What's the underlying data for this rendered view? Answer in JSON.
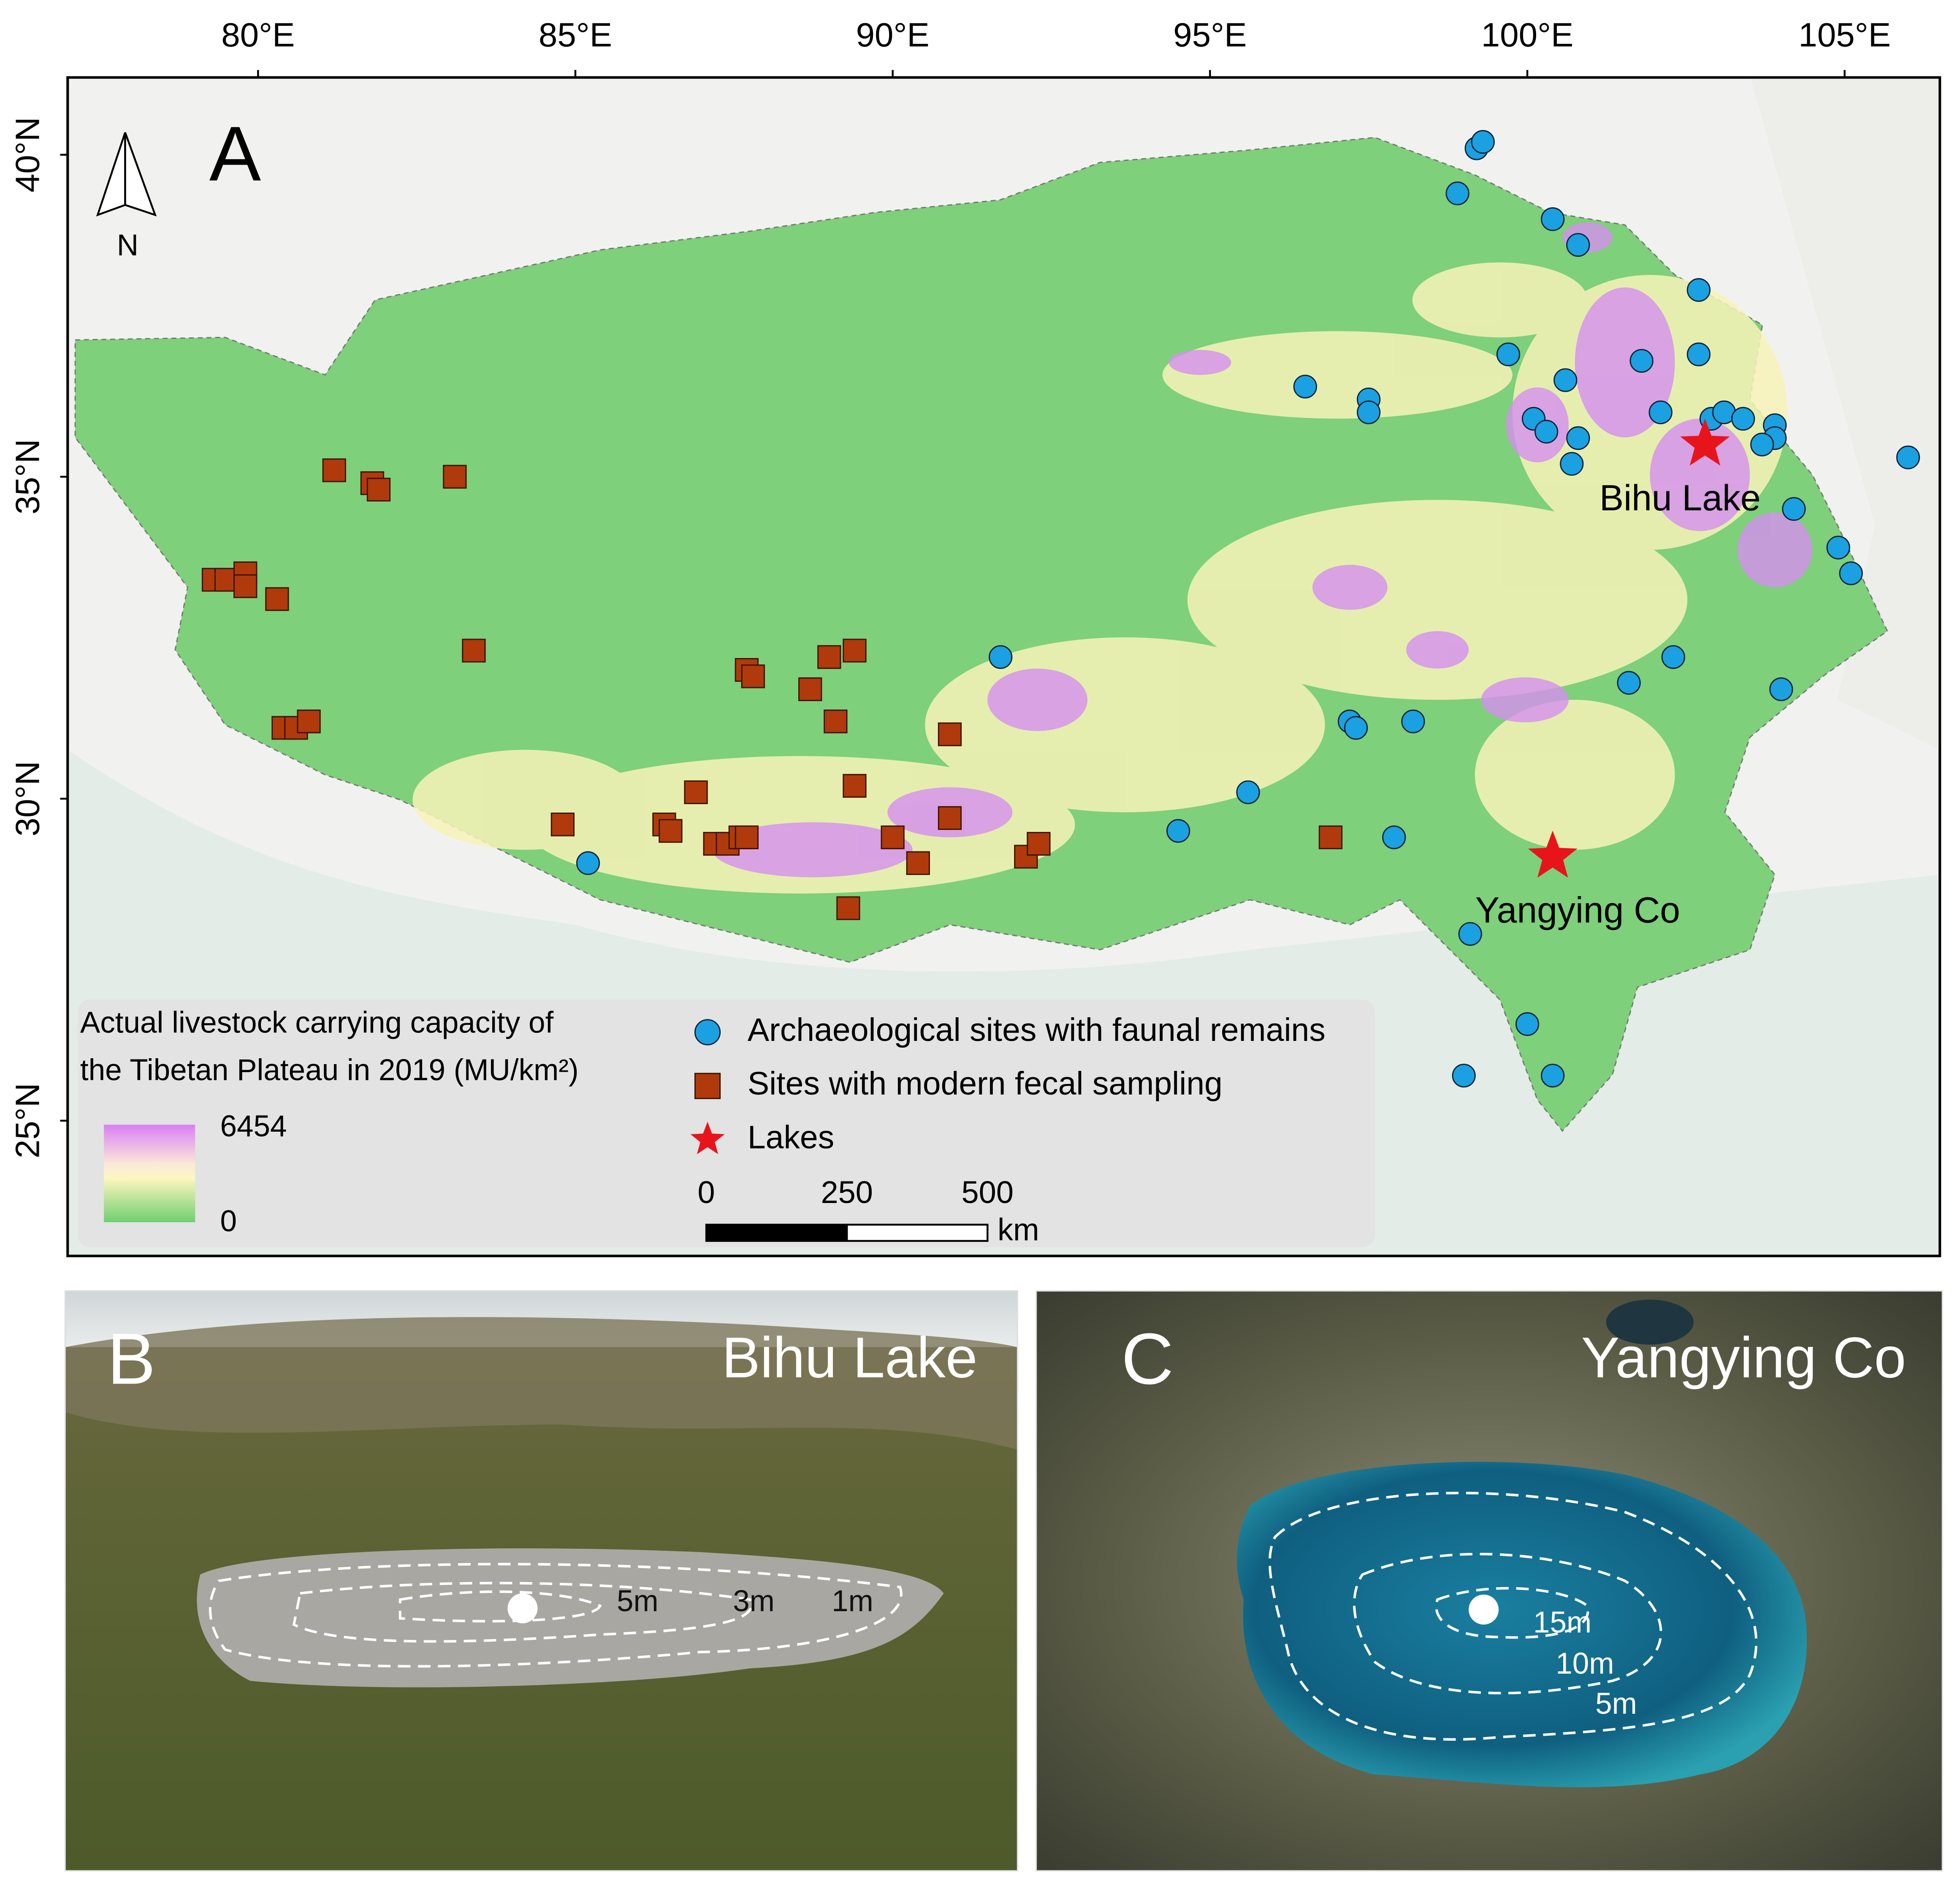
{
  "map": {
    "panel": "A",
    "north": "N",
    "xlim": [
      77,
      106.5
    ],
    "ylim": [
      22.9,
      41.2
    ],
    "xticks": [
      {
        "value": 80,
        "label": "80°E"
      },
      {
        "value": 85,
        "label": "85°E"
      },
      {
        "value": 90,
        "label": "90°E"
      },
      {
        "value": 95,
        "label": "95°E"
      },
      {
        "value": 100,
        "label": "100°E"
      },
      {
        "value": 105,
        "label": "105°E"
      }
    ],
    "yticks": [
      {
        "value": 40,
        "label": "40°N"
      },
      {
        "value": 35,
        "label": "35°N"
      },
      {
        "value": 30,
        "label": "30°N"
      },
      {
        "value": 25,
        "label": "25°N"
      }
    ],
    "colorbar": {
      "title": [
        "Actual livestock carrying capacity of",
        "the Tibetan Plateau in 2019 (MU/km²)"
      ],
      "max": 6454,
      "min": 0
    },
    "scalebar": {
      "ticks": [
        0,
        250,
        500
      ],
      "unit": "km"
    },
    "sites": [
      {
        "name": "Archaeological sites with faunal remains",
        "color": "#1ba1e2",
        "shape": "circle",
        "points": [
          [
            99.2,
            40.1
          ],
          [
            99.3,
            40.2
          ],
          [
            98.9,
            39.4
          ],
          [
            100.4,
            39.0
          ],
          [
            100.8,
            38.6
          ],
          [
            102.7,
            37.9
          ],
          [
            99.7,
            36.9
          ],
          [
            101.8,
            36.8
          ],
          [
            102.7,
            36.9
          ],
          [
            100.6,
            36.5
          ],
          [
            96.5,
            36.4
          ],
          [
            97.5,
            36.2
          ],
          [
            97.5,
            36.0
          ],
          [
            102.1,
            36.0
          ],
          [
            100.1,
            35.9
          ],
          [
            100.3,
            35.7
          ],
          [
            100.8,
            35.6
          ],
          [
            100.7,
            35.2
          ],
          [
            102.9,
            35.9
          ],
          [
            103.1,
            36.0
          ],
          [
            103.4,
            35.9
          ],
          [
            103.9,
            35.8
          ],
          [
            103.9,
            35.6
          ],
          [
            103.7,
            35.5
          ],
          [
            106.0,
            35.3
          ],
          [
            104.2,
            34.5
          ],
          [
            104.9,
            33.9
          ],
          [
            105.1,
            33.5
          ],
          [
            91.7,
            32.2
          ],
          [
            102.3,
            32.2
          ],
          [
            101.6,
            31.8
          ],
          [
            104.0,
            31.7
          ],
          [
            97.2,
            31.2
          ],
          [
            97.3,
            31.1
          ],
          [
            98.2,
            31.2
          ],
          [
            95.6,
            30.1
          ],
          [
            94.5,
            29.5
          ],
          [
            97.9,
            29.4
          ],
          [
            85.2,
            29.0
          ],
          [
            99.1,
            27.9
          ],
          [
            100.0,
            26.5
          ],
          [
            99.0,
            25.7
          ],
          [
            100.4,
            25.7
          ]
        ]
      },
      {
        "name": "Sites with modern fecal sampling",
        "color": "#b03a0c",
        "shape": "square",
        "points": [
          [
            81.2,
            35.1
          ],
          [
            81.8,
            34.9
          ],
          [
            81.9,
            34.8
          ],
          [
            83.1,
            35.0
          ],
          [
            79.3,
            33.4
          ],
          [
            79.5,
            33.4
          ],
          [
            79.8,
            33.5
          ],
          [
            79.8,
            33.3
          ],
          [
            80.3,
            33.1
          ],
          [
            83.4,
            32.3
          ],
          [
            87.7,
            32.0
          ],
          [
            87.8,
            31.9
          ],
          [
            89.0,
            32.2
          ],
          [
            89.4,
            32.3
          ],
          [
            88.7,
            31.7
          ],
          [
            89.1,
            31.2
          ],
          [
            90.9,
            31.0
          ],
          [
            80.4,
            31.1
          ],
          [
            80.6,
            31.1
          ],
          [
            80.8,
            31.2
          ],
          [
            86.9,
            30.1
          ],
          [
            89.4,
            30.2
          ],
          [
            84.8,
            29.6
          ],
          [
            86.4,
            29.6
          ],
          [
            86.5,
            29.5
          ],
          [
            90.9,
            29.7
          ],
          [
            87.2,
            29.3
          ],
          [
            87.4,
            29.3
          ],
          [
            87.6,
            29.4
          ],
          [
            87.7,
            29.4
          ],
          [
            90.0,
            29.4
          ],
          [
            90.4,
            29.0
          ],
          [
            92.1,
            29.1
          ],
          [
            92.3,
            29.3
          ],
          [
            89.3,
            28.3
          ],
          [
            96.9,
            29.4
          ]
        ]
      },
      {
        "name": "Lakes",
        "color": "#e8141c",
        "shape": "star",
        "points": [
          [
            102.8,
            35.5
          ],
          [
            100.4,
            29.1
          ]
        ],
        "labels": [
          "Bihu Lake",
          "Yangying Co"
        ]
      }
    ]
  },
  "photos": [
    {
      "panel": "B",
      "title": "Bihu Lake",
      "contours": [
        "5m",
        "3m",
        "1m"
      ]
    },
    {
      "panel": "C",
      "title": "Yangying Co",
      "contours": [
        "15m",
        "10m",
        "5m"
      ]
    }
  ]
}
